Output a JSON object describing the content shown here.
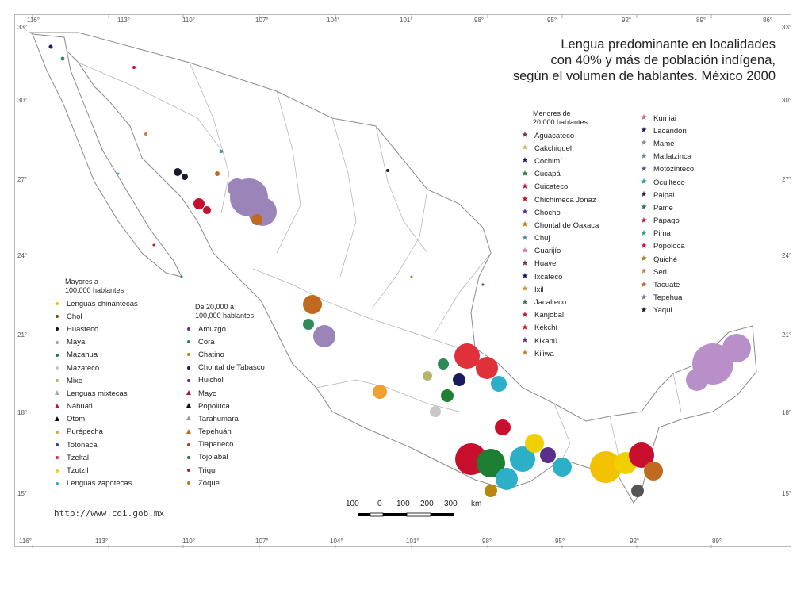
{
  "title": {
    "line1": "Lengua predominante en localidades",
    "line2": "con 40% y más de población indígena,",
    "line3": "según el volumen de hablantes. México 2000"
  },
  "source_url": "http://www.cdi.gob.mx",
  "longitude_ticks_top": [
    "116°",
    "113°",
    "110°",
    "107°",
    "104°",
    "101°",
    "98°",
    "95°",
    "92°",
    "89°",
    "86°"
  ],
  "longitude_ticks_bottom": [
    "116°",
    "113°",
    "110°",
    "107°",
    "104°",
    "101°",
    "98°",
    "95°",
    "92°",
    "89°"
  ],
  "latitude_ticks_left": [
    "33°",
    "30°",
    "27°",
    "24°",
    "21°",
    "18°",
    "15°"
  ],
  "latitude_ticks_right": [
    "33°",
    "30°",
    "27°",
    "24°",
    "21°",
    "18°",
    "15°"
  ],
  "scale_bar": {
    "labels": [
      "100",
      "0",
      "100",
      "200",
      "300"
    ],
    "unit": "km"
  },
  "legend_mayores": {
    "heading_line1": "Mayores a",
    "heading_line2": "100,000 hablantes",
    "items": [
      {
        "label": "Lenguas chinantecas",
        "color": "#f2c200",
        "symbol": "dot"
      },
      {
        "label": "Chol",
        "color": "#8b4513",
        "symbol": "dot"
      },
      {
        "label": "Huasteco",
        "color": "#111111",
        "symbol": "dot"
      },
      {
        "label": "Maya",
        "color": "#b98fc9",
        "symbol": "dot"
      },
      {
        "label": "Mazahua",
        "color": "#1e7e34",
        "symbol": "dot"
      },
      {
        "label": "Mazateco",
        "color": "#c8c8c8",
        "symbol": "dot"
      },
      {
        "label": "Mixe",
        "color": "#b5b56a",
        "symbol": "dot"
      },
      {
        "label": "Lenguas mixtecas",
        "color": "#8fbf8f",
        "symbol": "triangle"
      },
      {
        "label": "Náhuatl",
        "color": "#c8102e",
        "symbol": "triangle"
      },
      {
        "label": "Otomí",
        "color": "#000000",
        "symbol": "triangle"
      },
      {
        "label": "Purépecha",
        "color": "#f0a030",
        "symbol": "dot"
      },
      {
        "label": "Totonaca",
        "color": "#2f3ea0",
        "symbol": "dot"
      },
      {
        "label": "Tzeltal",
        "color": "#e0303a",
        "symbol": "dot"
      },
      {
        "label": "Tzotzil",
        "color": "#f0d000",
        "symbol": "dot"
      },
      {
        "label": "Lenguas zapotecas",
        "color": "#2bb0c8",
        "symbol": "dot"
      }
    ]
  },
  "legend_medios": {
    "heading_line1": "De 20,000 a",
    "heading_line2": "100,000 hablantes",
    "items": [
      {
        "label": "Amuzgo",
        "color": "#6a2c91",
        "symbol": "dot"
      },
      {
        "label": "Cora",
        "color": "#2e8b57",
        "symbol": "dot"
      },
      {
        "label": "Chatino",
        "color": "#b8860b",
        "symbol": "dot"
      },
      {
        "label": "Chontal de Tabasco",
        "color": "#1a1a5e",
        "symbol": "dot"
      },
      {
        "label": "Huichol",
        "color": "#5a2e8a",
        "symbol": "dot"
      },
      {
        "label": "Mayo",
        "color": "#a01a4a",
        "symbol": "triangle"
      },
      {
        "label": "Popoluca",
        "color": "#111111",
        "symbol": "triangle"
      },
      {
        "label": "Tarahumara",
        "color": "#9a9a9a",
        "symbol": "triangle"
      },
      {
        "label": "Tepehuán",
        "color": "#c06a20",
        "symbol": "triangle"
      },
      {
        "label": "Tlapaneco",
        "color": "#a04020",
        "symbol": "dot"
      },
      {
        "label": "Tojolabal",
        "color": "#1e7e34",
        "symbol": "dot"
      },
      {
        "label": "Triqui",
        "color": "#c8102e",
        "symbol": "dot"
      },
      {
        "label": "Zoque",
        "color": "#c07a10",
        "symbol": "dot"
      }
    ]
  },
  "legend_menores": {
    "heading_line1": "Menores de",
    "heading_line2": "20,000 hablantes",
    "items_col1": [
      {
        "label": "Aguacateco",
        "color": "#8b2a2a"
      },
      {
        "label": "Cakchiquel",
        "color": "#d8b860"
      },
      {
        "label": "Cochimí",
        "color": "#1a1a6e"
      },
      {
        "label": "Cucapá",
        "color": "#1e7e34"
      },
      {
        "label": "Cuicateco",
        "color": "#c8102e"
      },
      {
        "label": "Chichimeca Jonaz",
        "color": "#c8102e"
      },
      {
        "label": "Chocho",
        "color": "#5a2e8a"
      },
      {
        "label": "Chontal de Oaxaca",
        "color": "#c07a10"
      },
      {
        "label": "Chuj",
        "color": "#5a8aa0"
      },
      {
        "label": "Guarijío",
        "color": "#c080c0"
      },
      {
        "label": "Huave",
        "color": "#6a3a3a"
      },
      {
        "label": "Ixcateco",
        "color": "#1a1a5e"
      },
      {
        "label": "Ixil",
        "color": "#c0a040"
      },
      {
        "label": "Jacalteco",
        "color": "#2e7e4e"
      },
      {
        "label": "Kanjobal",
        "color": "#c8102e"
      },
      {
        "label": "Kekchí",
        "color": "#c8102e"
      },
      {
        "label": "Kikapú",
        "color": "#5a2e8a"
      },
      {
        "label": "Kiliwa",
        "color": "#c08040"
      }
    ],
    "items_col2": [
      {
        "label": "Kumiai",
        "color": "#c06080"
      },
      {
        "label": "Lacandón",
        "color": "#1a1a5e"
      },
      {
        "label": "Mame",
        "color": "#8a8a8a"
      },
      {
        "label": "Matlatzinca",
        "color": "#5a8aa0"
      },
      {
        "label": "Motozinteco",
        "color": "#6a4a8a"
      },
      {
        "label": "Ocuilteco",
        "color": "#2a9a9a"
      },
      {
        "label": "Paipai",
        "color": "#1a1a5e"
      },
      {
        "label": "Pame",
        "color": "#1e7e34"
      },
      {
        "label": "Pápago",
        "color": "#c8102e"
      },
      {
        "label": "Pima",
        "color": "#2a9a8a"
      },
      {
        "label": "Popoloca",
        "color": "#c8102e"
      },
      {
        "label": "Quiché",
        "color": "#9a7a20"
      },
      {
        "label": "Seri",
        "color": "#c08060"
      },
      {
        "label": "Tacuate",
        "color": "#c06030"
      },
      {
        "label": "Tepehua",
        "color": "#5a7aa0"
      },
      {
        "label": "Yaqui",
        "color": "#1a1a2e"
      }
    ]
  }
}
